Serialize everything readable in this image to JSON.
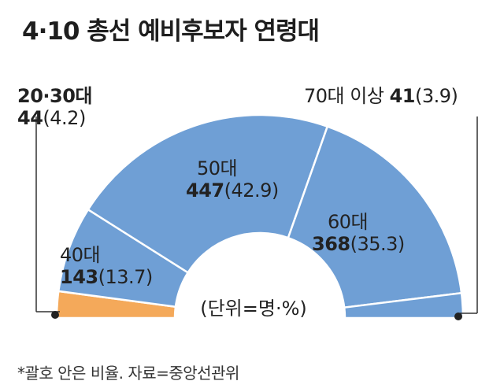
{
  "title": "4·10 총선 예비후보자 연령대",
  "unit_label": "(단위=명·%)",
  "footnote": "*괄호 안은 비율. 자료=중앙선관위",
  "colors": {
    "main_segment": "#6f9fd5",
    "highlight_segment": "#f4a95a",
    "separator": "#ffffff",
    "leader_line": "#333333",
    "text": "#222222"
  },
  "chart_data": {
    "type": "pie",
    "subtype": "half-donut",
    "title": "4·10 총선 예비후보자 연령대",
    "unit": "(단위=명·%)",
    "legend_position": "none",
    "categories": [
      "20·30대",
      "40대",
      "50대",
      "60대",
      "70대 이상"
    ],
    "values": [
      44,
      143,
      447,
      368,
      41
    ],
    "percents": [
      4.2,
      13.7,
      42.9,
      35.3,
      3.9
    ],
    "value_strings": [
      "44",
      "143",
      "447",
      "368",
      "41"
    ],
    "percent_strings": [
      "(4.2)",
      "(13.7)",
      "(42.9)",
      "(35.3)",
      "(3.9)"
    ],
    "segment_colors": [
      "#f4a95a",
      "#6f9fd5",
      "#6f9fd5",
      "#6f9fd5",
      "#6f9fd5"
    ]
  }
}
